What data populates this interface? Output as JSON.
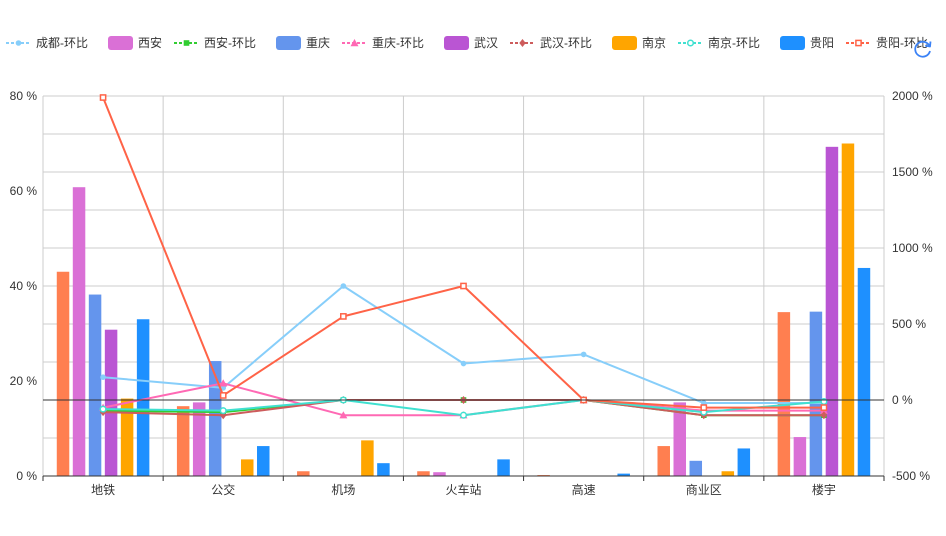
{
  "chart_data": {
    "type": "bar",
    "categories": [
      "地铁",
      "公交",
      "机场",
      "火车站",
      "高速",
      "商业区",
      "楼宇"
    ],
    "y_left": {
      "min": 0,
      "max": 80,
      "ticks": [
        0,
        20,
        40,
        60,
        80
      ],
      "unit": " %"
    },
    "y_right": {
      "min": -500,
      "max": 2000,
      "ticks": [
        -500,
        0,
        500,
        1000,
        1500,
        2000
      ],
      "unit": " %"
    },
    "legend_position": "top-right",
    "grid": true,
    "series": [
      {
        "name": "成都",
        "kind": "bar",
        "axis": "left",
        "color": "#ff7f50",
        "values": [
          43,
          14.7,
          1,
          1,
          0.2,
          6.3,
          34.5
        ]
      },
      {
        "name": "成都-环比",
        "kind": "line",
        "axis": "right",
        "color": "#87cefa",
        "marker": "circle",
        "values": [
          150,
          80,
          750,
          240,
          300,
          -20,
          -20
        ]
      },
      {
        "name": "西安",
        "kind": "bar",
        "axis": "left",
        "color": "#da70d6",
        "values": [
          60.8,
          15.5,
          0,
          0.8,
          0,
          15.5,
          8.2
        ]
      },
      {
        "name": "西安-环比",
        "kind": "line",
        "axis": "right",
        "color": "#32cd32",
        "marker": "square",
        "values": [
          -70,
          -80,
          0,
          0,
          0,
          -100,
          -100
        ]
      },
      {
        "name": "重庆",
        "kind": "bar",
        "axis": "left",
        "color": "#6495ed",
        "values": [
          38.2,
          24.2,
          0,
          0,
          0,
          3.2,
          34.6
        ]
      },
      {
        "name": "重庆-环比",
        "kind": "line",
        "axis": "right",
        "color": "#ff69b4",
        "marker": "triangle",
        "values": [
          -50,
          110,
          -100,
          -100,
          0,
          -70,
          -70
        ]
      },
      {
        "name": "武汉",
        "kind": "bar",
        "axis": "left",
        "color": "#ba55d3",
        "values": [
          30.8,
          0,
          0,
          0,
          0,
          0,
          69.3
        ]
      },
      {
        "name": "武汉-环比",
        "kind": "line",
        "axis": "right",
        "color": "#cd5c5c",
        "marker": "diamond",
        "values": [
          -80,
          -100,
          0,
          0,
          0,
          -100,
          -100
        ]
      },
      {
        "name": "南京",
        "kind": "bar",
        "axis": "left",
        "color": "#ffa500",
        "values": [
          16.3,
          3.5,
          7.5,
          0,
          0,
          1,
          70
        ]
      },
      {
        "name": "南京-环比",
        "kind": "line",
        "axis": "right",
        "color": "#40e0d0",
        "marker": "emptyCircle",
        "values": [
          -60,
          -70,
          0,
          -100,
          0,
          -80,
          -10
        ]
      },
      {
        "name": "贵阳",
        "kind": "bar",
        "axis": "left",
        "color": "#1e90ff",
        "values": [
          33,
          6.3,
          2.7,
          3.5,
          0.5,
          5.8,
          43.8
        ]
      },
      {
        "name": "贵阳-环比",
        "kind": "line",
        "axis": "right",
        "color": "#ff6347",
        "marker": "emptySquare",
        "values": [
          1990,
          30,
          550,
          750,
          0,
          -50,
          -50
        ]
      }
    ]
  },
  "toolbar": {
    "refresh_icon": "refresh-icon"
  }
}
